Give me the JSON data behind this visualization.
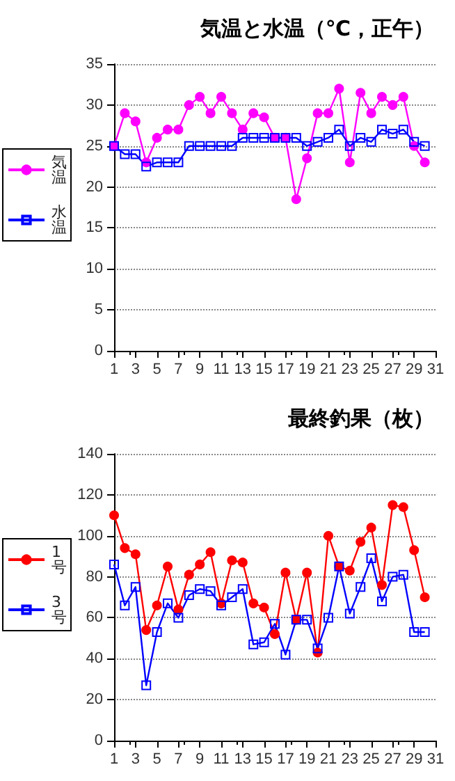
{
  "chart_data": [
    {
      "type": "line",
      "title": "気温と水温（℃，正午）",
      "x": [
        1,
        2,
        3,
        4,
        5,
        6,
        7,
        8,
        9,
        10,
        11,
        12,
        13,
        14,
        15,
        16,
        17,
        18,
        19,
        20,
        21,
        22,
        23,
        24,
        25,
        26,
        27,
        28,
        29,
        30
      ],
      "xlim": [
        1,
        31
      ],
      "xticks": [
        1,
        3,
        5,
        7,
        9,
        11,
        13,
        15,
        17,
        19,
        21,
        23,
        25,
        27,
        29,
        31
      ],
      "ylim": [
        0,
        35
      ],
      "yticks": [
        0,
        5,
        10,
        15,
        20,
        25,
        30,
        35
      ],
      "grid": "y",
      "legend": "left",
      "series": [
        {
          "name": "気温",
          "color": "#ff00ff",
          "marker": "circle",
          "values": [
            25,
            29,
            28,
            23,
            26,
            27,
            27,
            30,
            31,
            29,
            31,
            29,
            27,
            29,
            28.5,
            26,
            26,
            18.5,
            23.5,
            29,
            29,
            32,
            23,
            31.5,
            29,
            31,
            30,
            31,
            25,
            23
          ]
        },
        {
          "name": "水温",
          "color": "#0000ff",
          "marker": "square",
          "values": [
            25,
            24,
            24,
            22.5,
            23,
            23,
            23,
            25,
            25,
            25,
            25,
            25,
            26,
            26,
            26,
            26,
            26,
            26,
            25,
            25.5,
            26,
            27,
            25,
            26,
            25.5,
            27,
            26.5,
            27,
            25.5,
            25
          ]
        }
      ]
    },
    {
      "type": "line",
      "title": "最終釣果（枚）",
      "x": [
        1,
        2,
        3,
        4,
        5,
        6,
        7,
        8,
        9,
        10,
        11,
        12,
        13,
        14,
        15,
        16,
        17,
        18,
        19,
        20,
        21,
        22,
        23,
        24,
        25,
        26,
        27,
        28,
        29,
        30
      ],
      "xlim": [
        1,
        31
      ],
      "xticks": [
        1,
        3,
        5,
        7,
        9,
        11,
        13,
        15,
        17,
        19,
        21,
        23,
        25,
        27,
        29,
        31
      ],
      "ylim": [
        0,
        140
      ],
      "yticks": [
        0,
        20,
        40,
        60,
        80,
        100,
        120,
        140
      ],
      "grid": "y",
      "legend": "left",
      "series": [
        {
          "name": "1号",
          "color": "#ff0000",
          "marker": "circle",
          "values": [
            110,
            94,
            91,
            54,
            66,
            85,
            64,
            81,
            86,
            92,
            67,
            88,
            87,
            67,
            65,
            52,
            82,
            59,
            82,
            43,
            100,
            85,
            83,
            97,
            104,
            76,
            115,
            114,
            93,
            70
          ]
        },
        {
          "name": "3号",
          "color": "#0000ff",
          "marker": "square",
          "values": [
            86,
            66,
            75,
            27,
            53,
            67,
            60,
            71,
            74,
            73,
            66,
            70,
            74,
            47,
            48,
            57,
            42,
            59,
            59,
            45,
            60,
            85,
            62,
            75,
            89,
            68,
            80,
            81,
            53,
            53
          ]
        }
      ]
    }
  ]
}
